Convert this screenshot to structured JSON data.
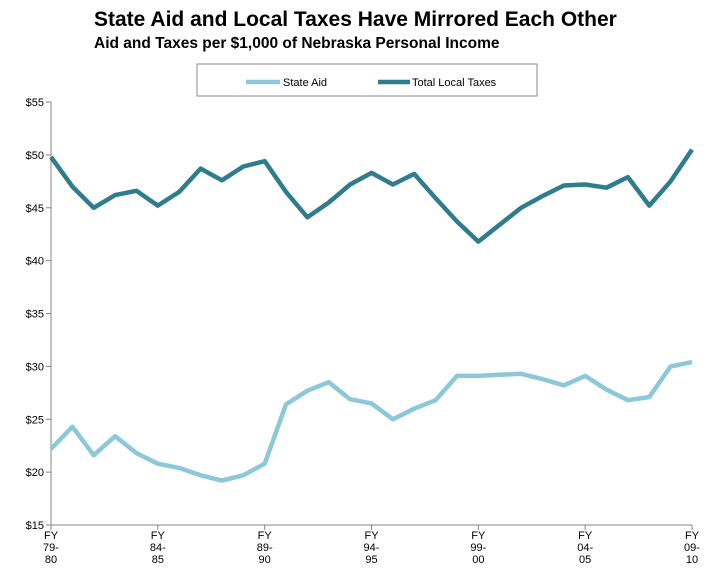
{
  "chart_data": {
    "type": "line",
    "title": "State Aid and Local Taxes Have Mirrored Each Other",
    "subtitle": "Aid and Taxes per $1,000 of Nebraska Personal Income",
    "xlabel": "",
    "ylabel": "",
    "ylim": [
      15,
      55
    ],
    "yticks": [
      "$15",
      "$20",
      "$25",
      "$30",
      "$35",
      "$40",
      "$45",
      "$50",
      "$55"
    ],
    "grid": false,
    "legend_position": "top-center",
    "categories": [
      "FY 79-80",
      "FY 80-81",
      "FY 81-82",
      "FY 82-83",
      "FY 83-84",
      "FY 84-85",
      "FY 85-86",
      "FY 86-87",
      "FY 87-88",
      "FY 88-89",
      "FY 89-90",
      "FY 90-91",
      "FY 91-92",
      "FY 92-93",
      "FY 93-94",
      "FY 94-95",
      "FY 95-96",
      "FY 96-97",
      "FY 97-98",
      "FY 98-99",
      "FY 99-00",
      "FY 00-01",
      "FY 01-02",
      "FY 02-03",
      "FY 03-04",
      "FY 04-05",
      "FY 05-06",
      "FY 06-07",
      "FY 07-08",
      "FY 08-09",
      "FY 09-10"
    ],
    "x_tick_labels": [
      {
        "index": 0,
        "lines": [
          "FY",
          "79-",
          "80"
        ]
      },
      {
        "index": 5,
        "lines": [
          "FY",
          "84-",
          "85"
        ]
      },
      {
        "index": 10,
        "lines": [
          "FY",
          "89-",
          "90"
        ]
      },
      {
        "index": 15,
        "lines": [
          "FY",
          "94-",
          "95"
        ]
      },
      {
        "index": 20,
        "lines": [
          "FY",
          "99-",
          "00"
        ]
      },
      {
        "index": 25,
        "lines": [
          "FY",
          "04-",
          "05"
        ]
      },
      {
        "index": 30,
        "lines": [
          "FY",
          "09-",
          "10"
        ]
      }
    ],
    "series": [
      {
        "name": "State Aid",
        "color": "#8cc8d8",
        "values": [
          22.2,
          24.3,
          21.6,
          23.4,
          21.8,
          20.8,
          20.4,
          19.7,
          19.2,
          19.7,
          20.8,
          26.4,
          27.7,
          28.5,
          26.9,
          26.5,
          25.0,
          26.0,
          26.8,
          29.1,
          29.1,
          29.2,
          29.3,
          28.8,
          28.2,
          29.1,
          27.8,
          26.8,
          27.1,
          30.0,
          30.4
        ]
      },
      {
        "name": "Total Local Taxes",
        "color": "#2e7c8c",
        "values": [
          49.8,
          47.0,
          45.0,
          46.2,
          46.6,
          45.2,
          46.5,
          48.7,
          47.6,
          48.9,
          49.4,
          46.5,
          44.1,
          45.5,
          47.2,
          48.3,
          47.2,
          48.2,
          45.9,
          43.7,
          41.8,
          43.4,
          45.0,
          46.1,
          47.1,
          47.2,
          46.9,
          47.9,
          45.2,
          47.5,
          50.5
        ]
      }
    ]
  }
}
